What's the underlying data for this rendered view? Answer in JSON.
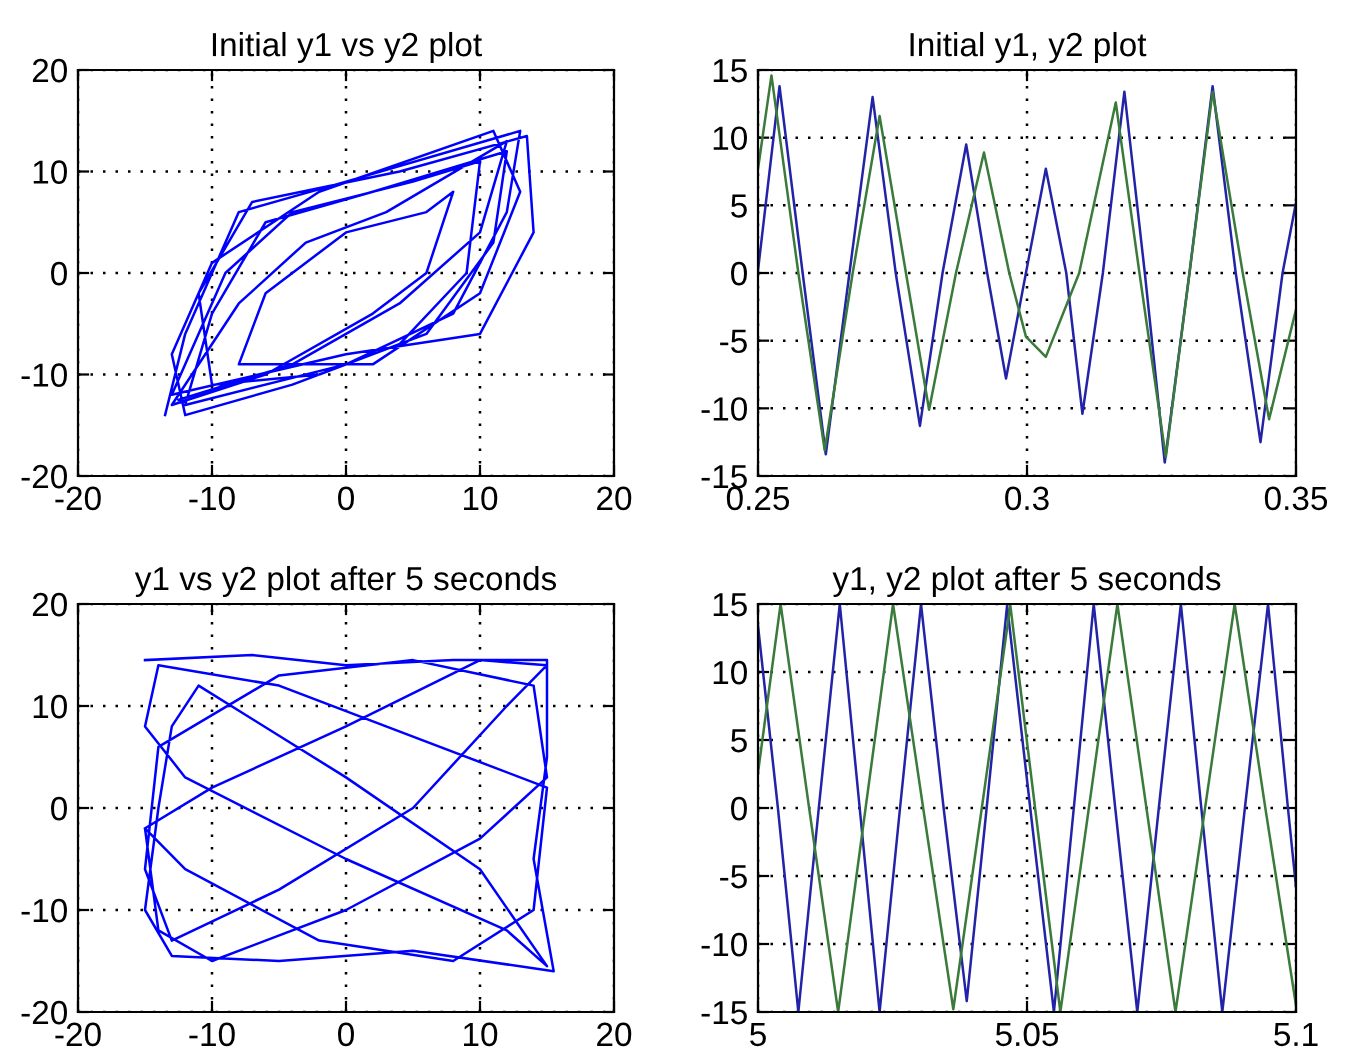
{
  "chart_data": [
    {
      "type": "line",
      "title": "Initial y1 vs y2 plot",
      "xlim": [
        -20,
        20
      ],
      "ylim": [
        -20,
        20
      ],
      "xticks": [
        -20,
        -10,
        0,
        10,
        20
      ],
      "yticks": [
        -20,
        -10,
        0,
        10,
        20
      ],
      "grid": true,
      "marker": "none",
      "line_style": "solid",
      "series": [
        {
          "color": "#0000ff",
          "x": [
            -13.5,
            -12,
            -8,
            0,
            13,
            12,
            8,
            0,
            -12,
            -10,
            -6,
            2,
            12,
            11,
            6,
            -2,
            -10,
            -11,
            -7,
            4,
            13.5,
            14,
            10,
            0,
            -13,
            -9,
            -4,
            5,
            10,
            9,
            4,
            -4,
            -12,
            -13,
            -10,
            -2,
            11,
            13,
            10,
            2,
            -8,
            -6,
            0,
            6,
            8,
            6,
            2,
            -6,
            -13,
            -8,
            -3,
            3,
            12,
            10,
            4,
            -4,
            -12.5
          ],
          "values": [
            -14,
            -6,
            6,
            9,
            14,
            6,
            -4,
            -9,
            -13,
            -4,
            5,
            8,
            12,
            3,
            -6,
            -10,
            -11,
            -2,
            7,
            10,
            13.5,
            4,
            -6,
            -8,
            -12,
            0,
            6,
            9,
            11,
            0,
            -7,
            -11,
            -14,
            -8,
            1,
            8,
            14,
            8,
            -2,
            -9,
            -9,
            -2,
            4,
            6,
            8,
            0,
            -4,
            -10,
            -13,
            -3,
            3,
            6,
            13,
            4,
            -3,
            -9,
            -12.5
          ]
        }
      ]
    },
    {
      "type": "line",
      "title": "Initial y1, y2 plot",
      "xlim": [
        0.25,
        0.35
      ],
      "ylim": [
        -15,
        15
      ],
      "xticks": [
        0.25,
        0.3,
        0.35
      ],
      "yticks": [
        -15,
        -10,
        -5,
        0,
        5,
        10,
        15
      ],
      "grid": true,
      "marker": "none",
      "line_style": "solid",
      "series": [
        {
          "color": "#2323a8",
          "x": [
            0.25,
            0.254,
            0.2583,
            0.2626,
            0.267,
            0.2713,
            0.2756,
            0.2801,
            0.2843,
            0.2887,
            0.2926,
            0.2961,
            0.2998,
            0.3035,
            0.3073,
            0.3103,
            0.3141,
            0.3181,
            0.3219,
            0.3256,
            0.3302,
            0.3345,
            0.3388,
            0.3434,
            0.3475,
            0.35
          ],
          "values": [
            0.2,
            13.8,
            0,
            -13.4,
            0,
            13.0,
            0,
            -11.3,
            0,
            9.5,
            0,
            -7.8,
            0,
            7.7,
            0,
            -10.4,
            0,
            13.4,
            0,
            -14.0,
            0,
            13.8,
            0,
            -12.5,
            0,
            5.2
          ]
        },
        {
          "color": "#3a7a3a",
          "x": [
            0.25,
            0.2525,
            0.2575,
            0.2624,
            0.2676,
            0.2726,
            0.2775,
            0.2818,
            0.2868,
            0.292,
            0.2967,
            0.2998,
            0.3035,
            0.3097,
            0.3165,
            0.3209,
            0.3258,
            0.3302,
            0.3345,
            0.3401,
            0.345,
            0.35
          ],
          "values": [
            7.7,
            14.6,
            0,
            -13.1,
            0,
            11.6,
            0,
            -10.1,
            0,
            8.9,
            0,
            -4.7,
            -6.2,
            0,
            12.6,
            0,
            -13.6,
            0,
            13.4,
            0,
            -10.8,
            -2.7
          ]
        }
      ]
    },
    {
      "type": "line",
      "title": "y1 vs y2 plot after 5 seconds",
      "xlim": [
        -20,
        20
      ],
      "ylim": [
        -20,
        20
      ],
      "xticks": [
        -20,
        -10,
        0,
        10,
        20
      ],
      "yticks": [
        -20,
        -10,
        0,
        10,
        20
      ],
      "grid": true,
      "marker": "none",
      "line_style": "solid",
      "series": [
        {
          "color": "#0000ff",
          "x": [
            -15,
            -7,
            0,
            8,
            15,
            15,
            14,
            15.5,
            5,
            -5,
            -13,
            -15,
            -14,
            -13,
            -11,
            0,
            10,
            15,
            12,
            0,
            -12,
            -15,
            -14,
            -5,
            5,
            15,
            14,
            8,
            -2,
            -12,
            -15,
            -14,
            -10,
            0,
            10,
            15,
            14,
            5,
            -5,
            -14,
            -15,
            -13,
            -5,
            5,
            12,
            15,
            10,
            0,
            -10,
            -15
          ],
          "values": [
            14.5,
            15,
            14,
            14.5,
            14.5,
            5,
            -5,
            -16,
            -14,
            -15,
            -14.5,
            -10,
            0,
            8,
            12,
            3,
            -6,
            -15.5,
            -12,
            -5,
            3,
            8,
            14,
            12,
            7,
            2,
            -10,
            -15,
            -13,
            -6,
            -2,
            -12,
            -15,
            -10,
            -3,
            3,
            12,
            14.5,
            13,
            6,
            -6,
            -13,
            -8,
            0,
            10,
            14,
            14.5,
            8,
            2,
            -2
          ]
        }
      ]
    },
    {
      "type": "line",
      "title": "y1, y2 plot after 5 seconds",
      "xlim": [
        5,
        5.1
      ],
      "ylim": [
        -15,
        15
      ],
      "xticks": [
        5,
        5.05,
        5.1
      ],
      "yticks": [
        -15,
        -10,
        -5,
        0,
        5,
        10,
        15
      ],
      "grid": true,
      "marker": "none",
      "line_style": "solid",
      "series": [
        {
          "color": "#2323a8",
          "x": [
            5,
            5.0037,
            5.0075,
            5.0113,
            5.0152,
            5.0189,
            5.0226,
            5.0264,
            5.0303,
            5.0345,
            5.0388,
            5.0425,
            5.0463,
            5.0506,
            5.055,
            5.0587,
            5.0624,
            5.0664,
            5.0705,
            5.0745,
            5.0786,
            5.0824,
            5.0863,
            5.0905,
            5.0948,
            5.0985,
            5.1
          ],
          "values": [
            13.4,
            0,
            -15,
            0,
            15,
            0,
            -15,
            0,
            15,
            0,
            -14.2,
            0,
            14.9,
            0,
            -15,
            0,
            15,
            0,
            -15,
            0,
            15,
            0,
            -15,
            0,
            15,
            0,
            -5.8
          ]
        },
        {
          "color": "#3a7a3a",
          "x": [
            5,
            5.0042,
            5.0095,
            5.0149,
            5.02,
            5.0251,
            5.0307,
            5.0363,
            5.0416,
            5.0469,
            5.0515,
            5.0562,
            5.0615,
            5.0668,
            5.0722,
            5.0776,
            5.0831,
            5.0886,
            5.0943,
            5.1
          ],
          "values": [
            2.6,
            15,
            0,
            -15,
            0,
            15,
            0,
            -14.8,
            0,
            14.9,
            0,
            -15,
            0,
            15,
            0,
            -15,
            0,
            15,
            0,
            -14.5
          ]
        }
      ]
    }
  ]
}
